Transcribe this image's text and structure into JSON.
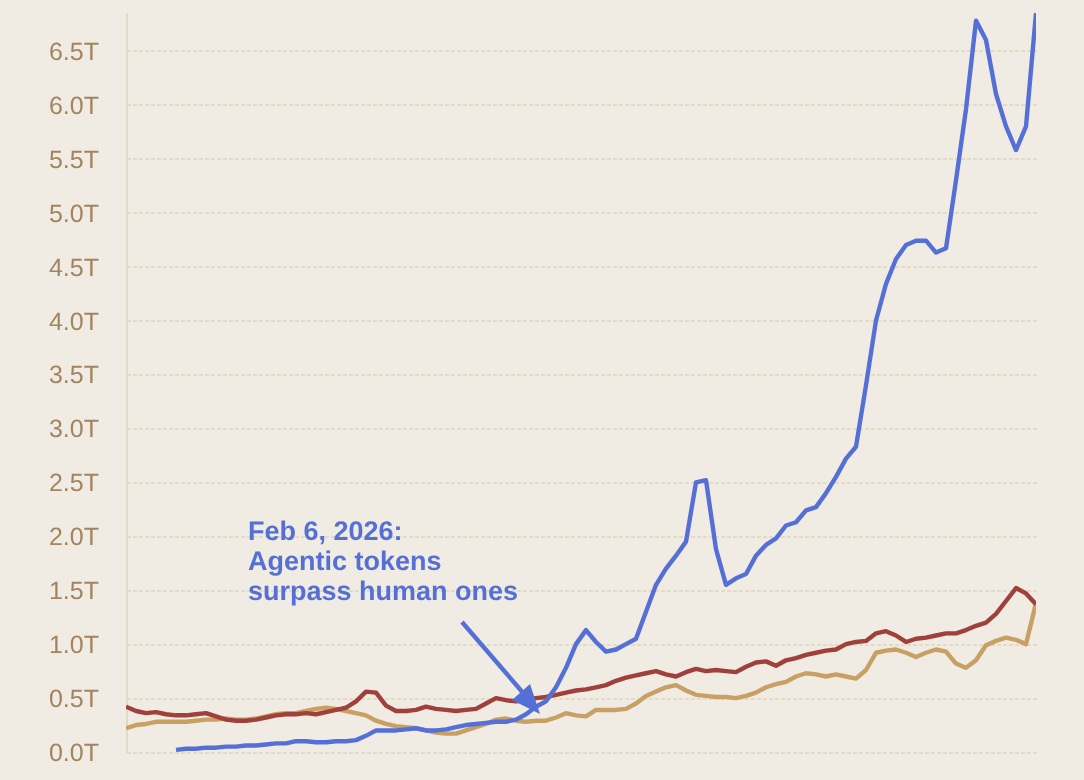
{
  "chart_data": {
    "type": "line",
    "categories": [
      null,
      null,
      null,
      null,
      null,
      null,
      null,
      null,
      null,
      null,
      null,
      null,
      null,
      null,
      null,
      null,
      null,
      null,
      null,
      null,
      null,
      null,
      null,
      null,
      null,
      null,
      null,
      null,
      null,
      null,
      null,
      null,
      null,
      null,
      null,
      null,
      null,
      null,
      null,
      null,
      null,
      null,
      null,
      null,
      null,
      null,
      null,
      null,
      null,
      null,
      null,
      null,
      null,
      null,
      null,
      null,
      null,
      null,
      null,
      null,
      null,
      null,
      null,
      null,
      null,
      null,
      null,
      null,
      null,
      null,
      null,
      null,
      null,
      null,
      null,
      null,
      null,
      null,
      null,
      null,
      null,
      null,
      null,
      null,
      null,
      null,
      null,
      null,
      null,
      null,
      null,
      null
    ],
    "series": [
      {
        "color": "#c9a064",
        "values": [
          0.22,
          0.25,
          0.26,
          0.28,
          0.28,
          0.28,
          0.28,
          0.29,
          0.3,
          0.3,
          0.31,
          0.3,
          0.3,
          0.31,
          0.33,
          0.35,
          0.36,
          0.36,
          0.38,
          0.4,
          0.41,
          0.4,
          0.38,
          0.36,
          0.34,
          0.29,
          0.26,
          0.24,
          0.23,
          0.22,
          0.2,
          0.18,
          0.17,
          0.17,
          0.2,
          0.23,
          0.26,
          0.3,
          0.31,
          0.29,
          0.28,
          0.29,
          0.29,
          0.32,
          0.36,
          0.34,
          0.33,
          0.39,
          0.39,
          0.39,
          0.4,
          0.45,
          0.52,
          0.56,
          0.6,
          0.62,
          0.57,
          0.53,
          0.52,
          0.51,
          0.51,
          0.5,
          0.52,
          0.55,
          0.6,
          0.63,
          0.65,
          0.7,
          0.73,
          0.72,
          0.7,
          0.72,
          0.7,
          0.68,
          0.76,
          0.92,
          0.94,
          0.95,
          0.92,
          0.88,
          0.92,
          0.95,
          0.93,
          0.82,
          0.78,
          0.85,
          0.99,
          1.03,
          1.06,
          1.04,
          1.0,
          1.38
        ]
      },
      {
        "color": "#a0403a",
        "values": [
          0.42,
          0.38,
          0.36,
          0.37,
          0.35,
          0.34,
          0.34,
          0.35,
          0.36,
          0.33,
          0.3,
          0.29,
          0.29,
          0.3,
          0.32,
          0.34,
          0.35,
          0.35,
          0.36,
          0.35,
          0.37,
          0.39,
          0.41,
          0.47,
          0.56,
          0.55,
          0.43,
          0.38,
          0.38,
          0.39,
          0.42,
          0.4,
          0.39,
          0.38,
          0.39,
          0.4,
          0.45,
          0.5,
          0.48,
          0.47,
          0.48,
          0.5,
          0.51,
          0.53,
          0.55,
          0.57,
          0.58,
          0.6,
          0.62,
          0.66,
          0.69,
          0.71,
          0.73,
          0.75,
          0.72,
          0.7,
          0.74,
          0.77,
          0.75,
          0.76,
          0.75,
          0.74,
          0.79,
          0.83,
          0.84,
          0.8,
          0.85,
          0.87,
          0.9,
          0.92,
          0.94,
          0.95,
          1.0,
          1.02,
          1.03,
          1.1,
          1.12,
          1.08,
          1.02,
          1.05,
          1.06,
          1.08,
          1.1,
          1.1,
          1.13,
          1.17,
          1.2,
          1.28,
          1.4,
          1.52,
          1.47,
          1.37
        ]
      },
      {
        "color": "#5470d6",
        "values": [
          null,
          null,
          null,
          null,
          null,
          0.02,
          0.03,
          0.03,
          0.04,
          0.04,
          0.05,
          0.05,
          0.06,
          0.06,
          0.07,
          0.08,
          0.08,
          0.1,
          0.1,
          0.09,
          0.09,
          0.1,
          0.1,
          0.11,
          0.15,
          0.2,
          0.2,
          0.2,
          0.21,
          0.22,
          0.2,
          0.2,
          0.21,
          0.23,
          0.25,
          0.26,
          0.27,
          0.28,
          0.28,
          0.3,
          0.35,
          0.42,
          0.47,
          0.6,
          0.78,
          1.0,
          1.13,
          1.02,
          0.93,
          0.95,
          1.0,
          1.05,
          1.3,
          1.55,
          1.7,
          1.82,
          1.95,
          2.5,
          2.52,
          1.88,
          1.55,
          1.61,
          1.65,
          1.82,
          1.92,
          1.98,
          2.1,
          2.13,
          2.24,
          2.27,
          2.4,
          2.55,
          2.72,
          2.83,
          3.4,
          4.0,
          4.34,
          4.57,
          4.7,
          4.74,
          4.74,
          4.63,
          4.67,
          5.3,
          5.96,
          6.78,
          6.6,
          6.1,
          5.8,
          5.58,
          5.8,
          6.85
        ]
      }
    ],
    "ylim": [
      0,
      6.86
    ],
    "yticks": [
      {
        "value": 0,
        "label": "0.0T"
      },
      {
        "value": 0.5,
        "label": "0.5T"
      },
      {
        "value": 1,
        "label": "1.0T"
      },
      {
        "value": 1.5,
        "label": "1.5T"
      },
      {
        "value": 2,
        "label": "2.0T"
      },
      {
        "value": 2.5,
        "label": "2.5T"
      },
      {
        "value": 3,
        "label": "3.0T"
      },
      {
        "value": 3.5,
        "label": "3.5T"
      },
      {
        "value": 4,
        "label": "4.0T"
      },
      {
        "value": 4.5,
        "label": "4.5T"
      },
      {
        "value": 5,
        "label": "5.0T"
      },
      {
        "value": 5.5,
        "label": "5.5T"
      },
      {
        "value": 6,
        "label": "6.0T"
      },
      {
        "value": 6.5,
        "label": "6.5T"
      }
    ],
    "grid": "y",
    "tick_labels": "y",
    "annotations": [
      "Feb 6, 2026:\nAgentic tokens\nsurpass human ones"
    ]
  }
}
